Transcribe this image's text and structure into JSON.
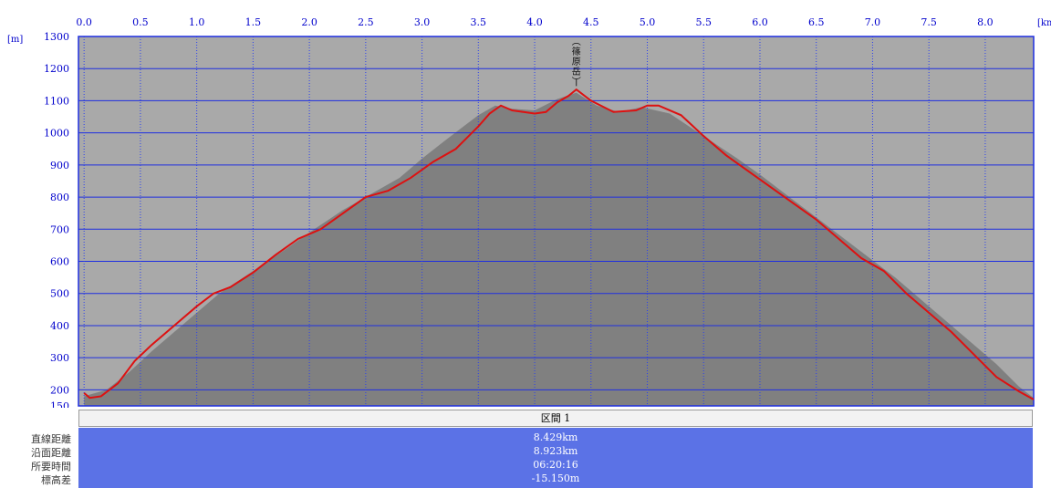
{
  "chart_data": {
    "type": "area",
    "xunit": "[km]",
    "yunit": "[m]",
    "x_ticks": [
      "0.0",
      "0.5",
      "1.0",
      "1.5",
      "2.0",
      "2.5",
      "3.0",
      "3.5",
      "4.0",
      "4.5",
      "5.0",
      "5.5",
      "6.0",
      "6.5",
      "7.0",
      "7.5",
      "8.0"
    ],
    "y_ticks": [
      "1300",
      "1200",
      "1100",
      "1000",
      "900",
      "800",
      "700",
      "600",
      "500",
      "400",
      "300",
      "200",
      "150"
    ],
    "xlim": [
      -0.05,
      8.43
    ],
    "ylim": [
      150,
      1300
    ],
    "grid": true,
    "annotation": "篠原岳",
    "annotation_at": [
      4.37,
      1140
    ],
    "series": [
      {
        "color": "#808080",
        "x": [
          0.0,
          0.2,
          0.4,
          0.6,
          0.8,
          1.0,
          1.2,
          1.5,
          1.8,
          2.0,
          2.3,
          2.6,
          2.8,
          3.0,
          3.2,
          3.5,
          3.65,
          3.8,
          4.0,
          4.2,
          4.37,
          4.55,
          4.75,
          4.95,
          5.2,
          5.5,
          5.8,
          6.0,
          6.3,
          6.6,
          6.9,
          7.2,
          7.5,
          7.8,
          8.1,
          8.3,
          8.43
        ],
        "y": [
          180,
          200,
          255,
          320,
          380,
          440,
          500,
          570,
          640,
          690,
          760,
          820,
          860,
          920,
          975,
          1055,
          1085,
          1075,
          1070,
          1105,
          1125,
          1085,
          1065,
          1080,
          1060,
          990,
          920,
          870,
          790,
          710,
          630,
          550,
          460,
          370,
          280,
          210,
          175
        ]
      },
      {
        "color": "#dd1111",
        "x": [
          0.0,
          0.05,
          0.15,
          0.3,
          0.45,
          0.6,
          0.8,
          1.0,
          1.15,
          1.3,
          1.5,
          1.7,
          1.9,
          2.1,
          2.3,
          2.5,
          2.7,
          2.9,
          3.1,
          3.3,
          3.5,
          3.6,
          3.7,
          3.8,
          4.0,
          4.1,
          4.2,
          4.3,
          4.37,
          4.5,
          4.7,
          4.9,
          5.0,
          5.1,
          5.3,
          5.5,
          5.7,
          5.9,
          6.1,
          6.3,
          6.5,
          6.7,
          6.9,
          7.1,
          7.3,
          7.5,
          7.7,
          7.9,
          8.1,
          8.3,
          8.43
        ],
        "y": [
          190,
          175,
          180,
          220,
          290,
          340,
          400,
          460,
          500,
          520,
          565,
          620,
          670,
          700,
          750,
          800,
          820,
          860,
          910,
          950,
          1020,
          1060,
          1085,
          1070,
          1060,
          1065,
          1095,
          1115,
          1135,
          1100,
          1065,
          1070,
          1085,
          1085,
          1055,
          990,
          930,
          880,
          830,
          780,
          730,
          670,
          610,
          570,
          500,
          440,
          380,
          310,
          240,
          195,
          170
        ]
      }
    ]
  },
  "summary": {
    "section_header": "区間 1",
    "rows": [
      {
        "label": "直線距離",
        "value": "8.429km"
      },
      {
        "label": "沿面距離",
        "value": "8.923km"
      },
      {
        "label": "所要時間",
        "value": "06:20:16"
      },
      {
        "label": "標高差",
        "value": "-15.150m"
      }
    ]
  }
}
